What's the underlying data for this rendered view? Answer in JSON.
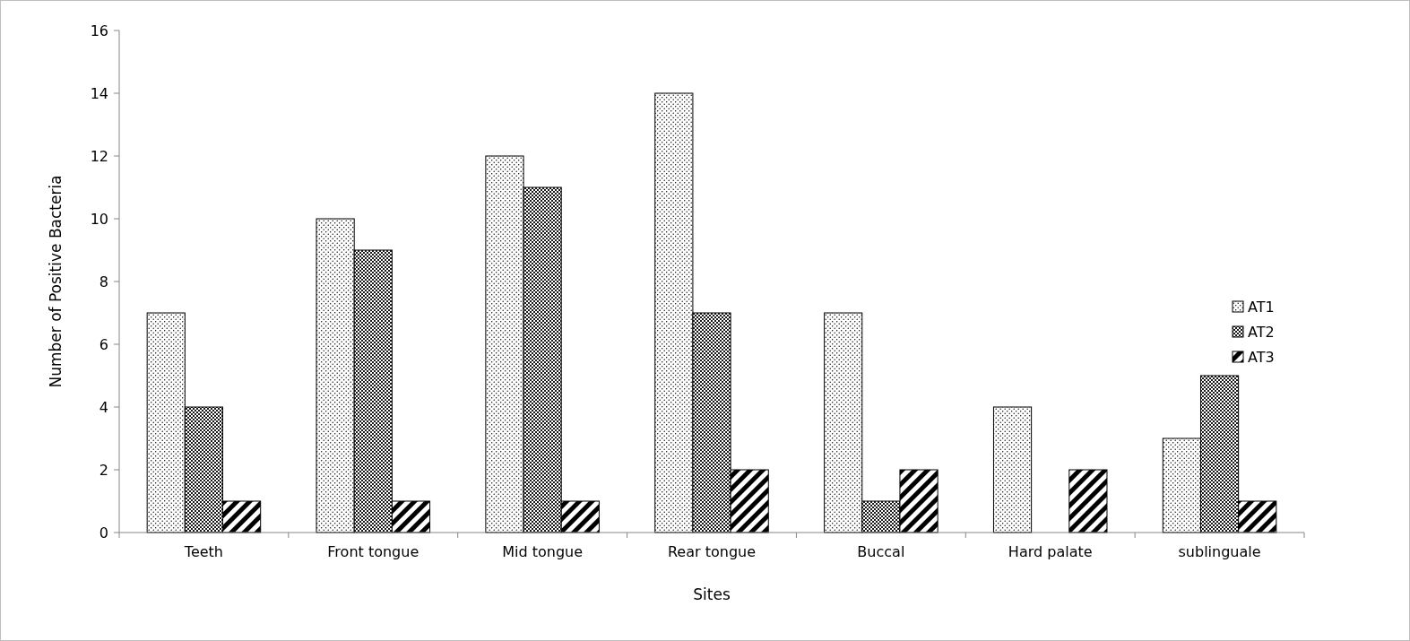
{
  "chart_data": {
    "type": "bar",
    "xlabel": "Sites",
    "ylabel": "Number of Positive Bacteria",
    "categories": [
      "Teeth",
      "Front tongue",
      "Mid tongue",
      "Rear tongue",
      "Buccal",
      "Hard palate",
      "sublinguale"
    ],
    "series": [
      {
        "name": "AT1",
        "color": "#000000",
        "values": [
          7,
          10,
          12,
          14,
          7,
          4,
          3
        ]
      },
      {
        "name": "AT2",
        "color": "#000000",
        "values": [
          4,
          9,
          11,
          7,
          1,
          0,
          5
        ]
      },
      {
        "name": "AT3",
        "color": "#000000",
        "values": [
          1,
          1,
          1,
          2,
          2,
          2,
          1
        ]
      }
    ],
    "ylim": [
      0,
      16
    ],
    "yticks": [
      0,
      2,
      4,
      6,
      8,
      10,
      12,
      14,
      16
    ],
    "grid": false,
    "legend": "right"
  }
}
